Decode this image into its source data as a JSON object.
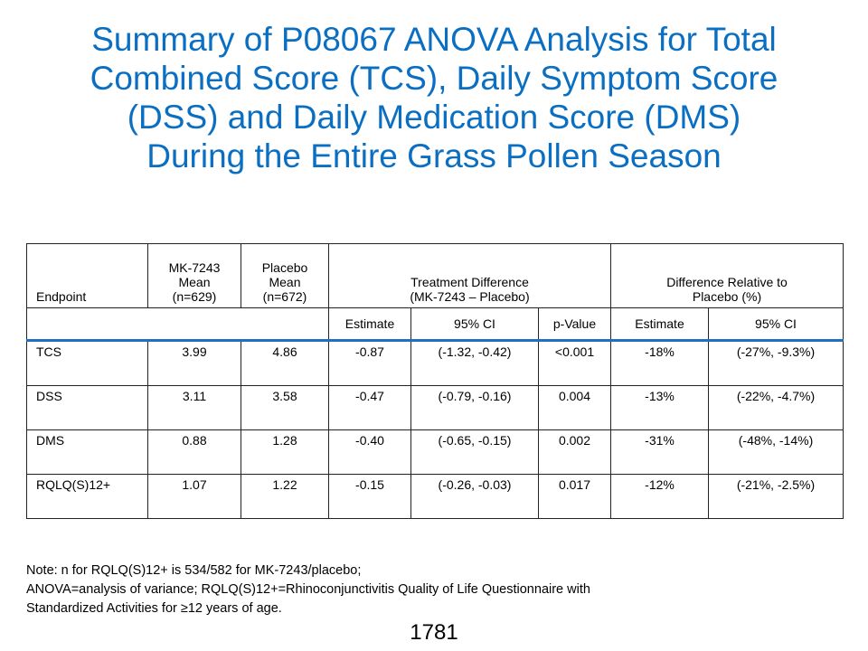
{
  "title": {
    "lines": [
      "Summary of P08067 ANOVA Analysis for Total",
      "Combined Score (TCS), Daily Symptom Score",
      "(DSS) and Daily Medication Score (DMS)",
      "During the Entire Grass Pollen Season"
    ]
  },
  "table": {
    "header1": {
      "endpoint": "Endpoint",
      "mk_mean": [
        "MK-7243",
        "Mean",
        "(n=629)"
      ],
      "placebo_mean": [
        "Placebo",
        "Mean",
        "(n=672)"
      ],
      "treatment_diff": [
        "Treatment Difference",
        "(MK-7243 – Placebo)"
      ],
      "relative_diff": [
        "Difference Relative to",
        "Placebo (%)"
      ]
    },
    "header2": [
      "Estimate",
      "95% CI",
      "p-Value",
      "Estimate",
      "95% CI"
    ],
    "rows": [
      [
        "TCS",
        "3.99",
        "4.86",
        "-0.87",
        "(-1.32, -0.42)",
        "<0.001",
        "-18%",
        "(-27%, -9.3%)"
      ],
      [
        "DSS",
        "3.11",
        "3.58",
        "-0.47",
        "(-0.79, -0.16)",
        "0.004",
        "-13%",
        "(-22%, -4.7%)"
      ],
      [
        "DMS",
        "0.88",
        "1.28",
        "-0.40",
        "(-0.65, -0.15)",
        "0.002",
        "-31%",
        "(-48%, -14%)"
      ],
      [
        "RQLQ(S)12+",
        "1.07",
        "1.22",
        "-0.15",
        "(-0.26, -0.03)",
        "0.017",
        "-12%",
        "(-21%, -2.5%)"
      ]
    ]
  },
  "note": {
    "lines": [
      "Note: n for RQLQ(S)12+ is 534/582 for MK-7243/placebo;",
      "ANOVA=analysis of variance; RQLQ(S)12+=Rhinoconjunctivitis Quality of Life Questionnaire with",
      "Standardized Activities for ≥12 years of age."
    ]
  },
  "page_number": "1781",
  "colors": {
    "title": "#0a6fc2",
    "table_accent": "#1f6fc4"
  }
}
